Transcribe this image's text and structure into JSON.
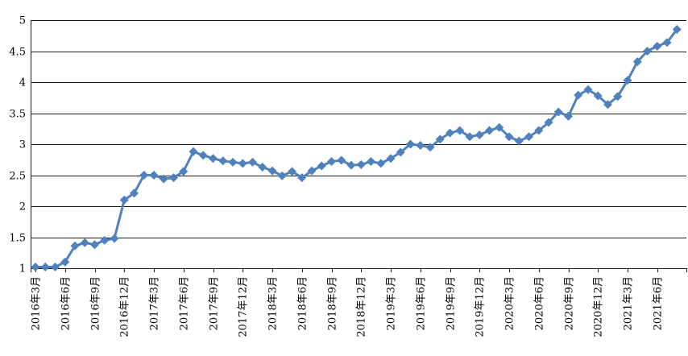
{
  "chart_data": {
    "type": "line",
    "title": "",
    "xlabel": "",
    "ylabel": "",
    "legend": "none",
    "grid": "horizontal",
    "background_color": "#ffffff",
    "gridline_color": "#1a1a1a",
    "axis_color": "#1a1a1a",
    "series": [
      {
        "name": "series-1",
        "color": "#4F81BD",
        "marker": "diamond",
        "line_width": 3,
        "x": [
          "2016-03",
          "2016-04",
          "2016-05",
          "2016-06",
          "2016-07",
          "2016-08",
          "2016-09",
          "2016-10",
          "2016-11",
          "2016-12",
          "2017-01",
          "2017-02",
          "2017-03",
          "2017-04",
          "2017-05",
          "2017-06",
          "2017-07",
          "2017-08",
          "2017-09",
          "2017-10",
          "2017-11",
          "2017-12",
          "2018-01",
          "2018-02",
          "2018-03",
          "2018-04",
          "2018-05",
          "2018-06",
          "2018-07",
          "2018-08",
          "2018-09",
          "2018-10",
          "2018-11",
          "2018-12",
          "2019-01",
          "2019-02",
          "2019-03",
          "2019-04",
          "2019-05",
          "2019-06",
          "2019-07",
          "2019-08",
          "2019-09",
          "2019-10",
          "2019-11",
          "2019-12",
          "2020-01",
          "2020-02",
          "2020-03",
          "2020-04",
          "2020-05",
          "2020-06",
          "2020-07",
          "2020-08",
          "2020-09",
          "2020-10",
          "2020-11",
          "2020-12",
          "2021-01",
          "2021-02",
          "2021-03",
          "2021-04",
          "2021-05",
          "2021-06",
          "2021-07",
          "2021-08"
        ],
        "values": [
          1.02,
          1.02,
          1.02,
          1.1,
          1.36,
          1.41,
          1.38,
          1.45,
          1.48,
          2.1,
          2.21,
          2.5,
          2.5,
          2.44,
          2.46,
          2.56,
          2.88,
          2.82,
          2.77,
          2.73,
          2.71,
          2.69,
          2.71,
          2.63,
          2.57,
          2.49,
          2.56,
          2.46,
          2.57,
          2.65,
          2.72,
          2.74,
          2.66,
          2.67,
          2.72,
          2.69,
          2.77,
          2.87,
          3.0,
          2.98,
          2.95,
          3.08,
          3.18,
          3.22,
          3.12,
          3.15,
          3.22,
          3.27,
          3.12,
          3.05,
          3.12,
          3.22,
          3.35,
          3.52,
          3.45,
          3.79,
          3.88,
          3.78,
          3.64,
          3.77,
          4.03,
          4.33,
          4.5,
          4.58,
          4.64,
          4.85
        ]
      }
    ],
    "x_axis": {
      "tick_every_n_months": 3,
      "tick_labels": [
        "2016年3月",
        "2016年6月",
        "2016年9月",
        "2016年12月",
        "2017年3月",
        "2017年6月",
        "2017年9月",
        "2017年12月",
        "2018年3月",
        "2018年6月",
        "2018年9月",
        "2018年12月",
        "2019年3月",
        "2019年6月",
        "2019年9月",
        "2019年12月",
        "2020年3月",
        "2020年6月",
        "2020年9月",
        "2020年12月",
        "2021年3月",
        "2021年6月"
      ],
      "label_rotation_deg": -90
    },
    "y_axis": {
      "min": 1,
      "max": 5,
      "step": 0.5,
      "tick_labels": [
        "1",
        "1.5",
        "2",
        "2.5",
        "3",
        "3.5",
        "4",
        "4.5",
        "5"
      ]
    }
  }
}
